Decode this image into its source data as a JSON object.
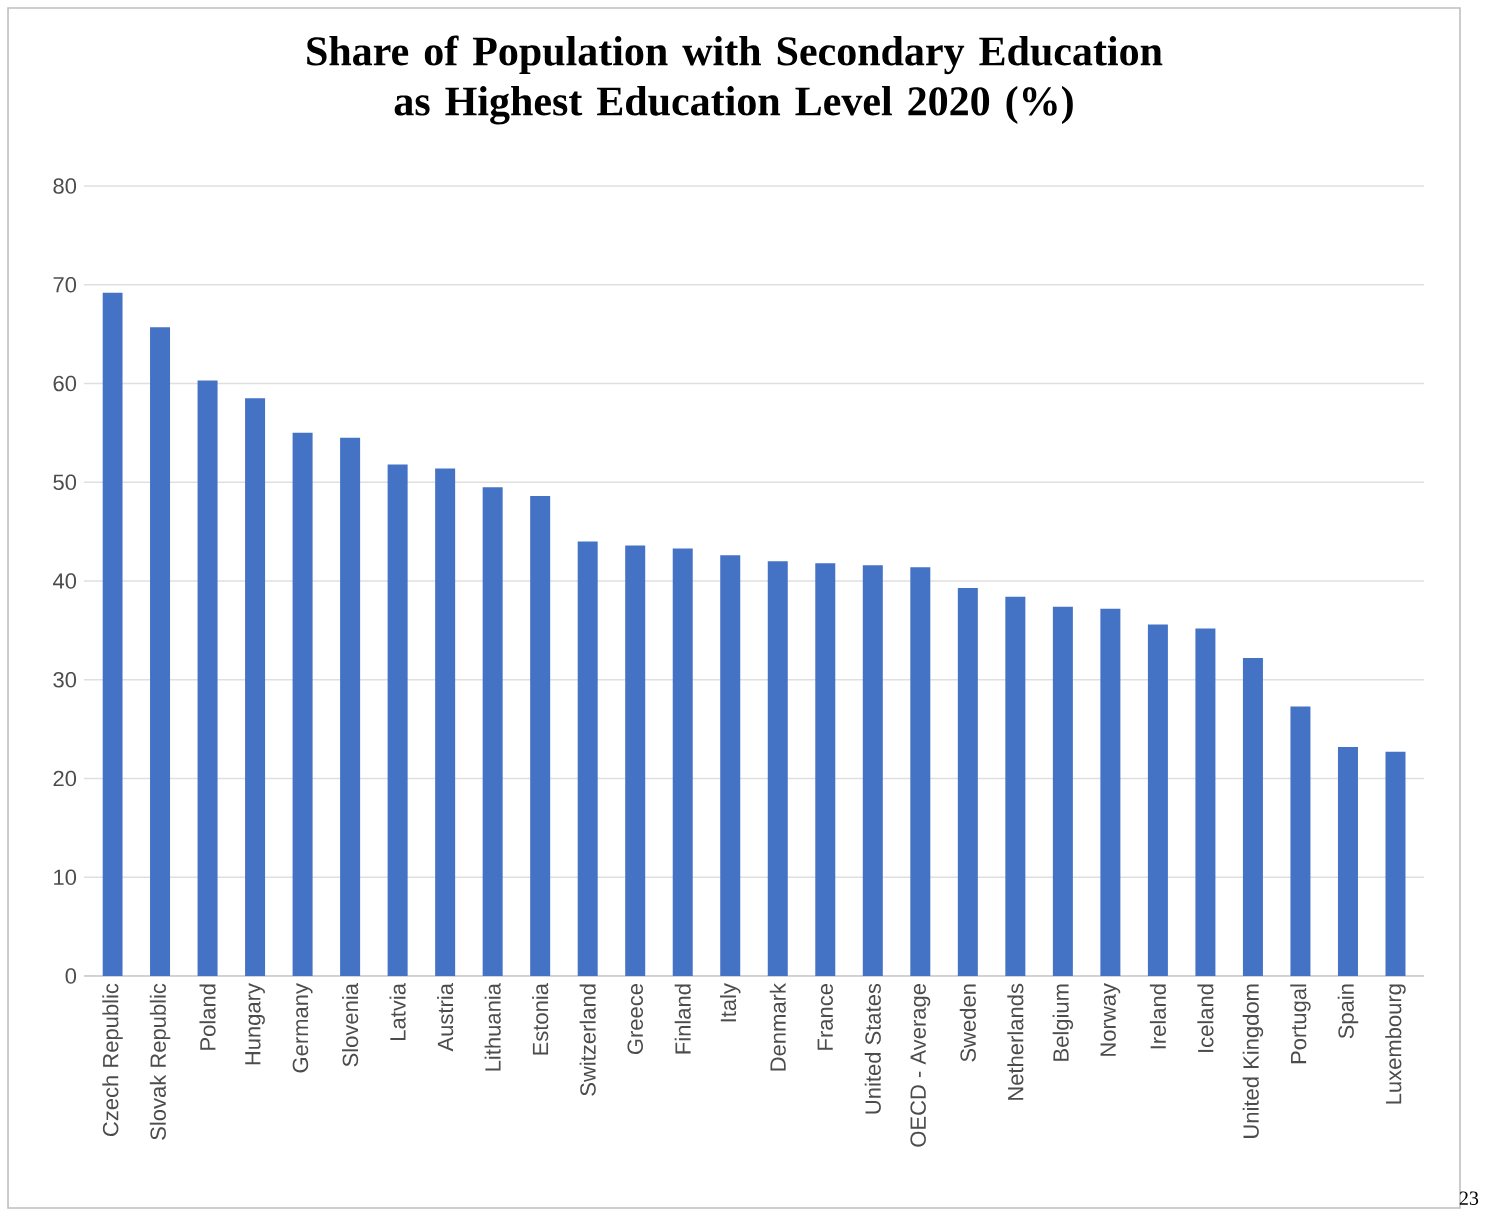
{
  "chart_data": {
    "type": "bar",
    "title": "Share of Population with Secondary Education as Highest Education Level 2020 (%)",
    "categories": [
      "Czech Republic",
      "Slovak Republic",
      "Poland",
      "Hungary",
      "Germany",
      "Slovenia",
      "Latvia",
      "Austria",
      "Lithuania",
      "Estonia",
      "Switzerland",
      "Greece",
      "Finland",
      "Italy",
      "Denmark",
      "France",
      "United States",
      "OECD - Average",
      "Sweden",
      "Netherlands",
      "Belgium",
      "Norway",
      "Ireland",
      "Iceland",
      "United Kingdom",
      "Portugal",
      "Spain",
      "Luxembourg"
    ],
    "values": [
      69.2,
      65.7,
      60.3,
      58.5,
      55.0,
      54.5,
      51.8,
      51.4,
      49.5,
      48.6,
      44.0,
      43.6,
      43.3,
      42.6,
      42.0,
      41.8,
      41.6,
      41.4,
      39.3,
      38.4,
      37.4,
      37.2,
      35.6,
      35.2,
      32.2,
      27.3,
      23.2,
      22.7
    ],
    "color": "#4472c4",
    "ylim": [
      0,
      80
    ],
    "yticks": [
      0,
      10,
      20,
      30,
      40,
      50,
      60,
      70,
      80
    ],
    "grid": "y",
    "annotations": [
      "23"
    ]
  }
}
